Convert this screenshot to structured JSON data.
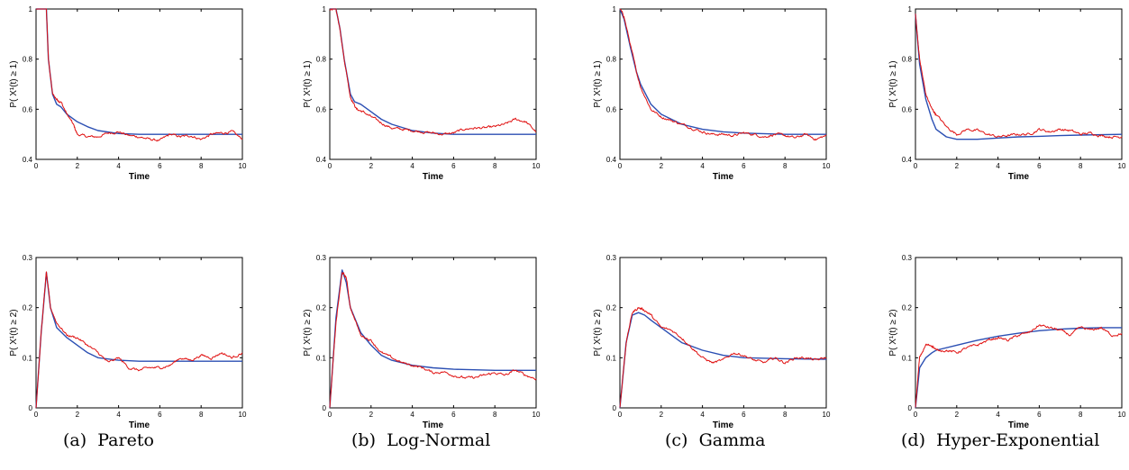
{
  "captions": [
    {
      "label": "(a)",
      "text": "Pareto"
    },
    {
      "label": "(b)",
      "text": "Log-Normal"
    },
    {
      "label": "(c)",
      "text": "Gamma"
    },
    {
      "label": "(d)",
      "text": "Hyper-Exponential"
    }
  ],
  "colors": {
    "model": "#2b4fb3",
    "simulation": "#e01010",
    "axis": "#000000"
  },
  "chart_data": [
    {
      "type": "line",
      "panel": "a-top",
      "xlabel": "Time",
      "ylabel": "P( X¹(t) ≥ 1)",
      "xlim": [
        0,
        10
      ],
      "ylim": [
        0.4,
        1
      ],
      "xticks": [
        "0",
        "2",
        "4",
        "6",
        "8",
        "10"
      ],
      "yticks": [
        "0.4",
        "0.6",
        "0.8",
        "1"
      ],
      "series": [
        {
          "role": "model",
          "x": [
            0,
            0.5,
            0.6,
            0.8,
            1,
            1.2,
            1.5,
            2,
            2.5,
            3,
            4,
            5,
            6,
            8,
            10
          ],
          "y": [
            1,
            1,
            0.8,
            0.66,
            0.62,
            0.61,
            0.58,
            0.55,
            0.53,
            0.515,
            0.503,
            0.5,
            0.5,
            0.5,
            0.5
          ]
        },
        {
          "role": "simulation",
          "x": [
            0,
            0.5,
            0.6,
            0.8,
            1,
            1.2,
            1.5,
            1.8,
            2,
            2.5,
            3,
            3.5,
            4,
            4.5,
            5,
            5.5,
            6,
            6.5,
            7,
            7.5,
            8,
            8.5,
            9,
            9.5,
            10
          ],
          "y": [
            1,
            1,
            0.8,
            0.66,
            0.64,
            0.63,
            0.58,
            0.54,
            0.5,
            0.49,
            0.49,
            0.505,
            0.51,
            0.495,
            0.49,
            0.48,
            0.475,
            0.5,
            0.49,
            0.495,
            0.48,
            0.5,
            0.505,
            0.51,
            0.48
          ]
        }
      ]
    },
    {
      "type": "line",
      "panel": "b-top",
      "xlabel": "Time",
      "ylabel": "P( X¹(t) ≥ 1)",
      "xlim": [
        0,
        10
      ],
      "ylim": [
        0.4,
        1
      ],
      "xticks": [
        "0",
        "2",
        "4",
        "6",
        "8",
        "10"
      ],
      "yticks": [
        "0.4",
        "0.6",
        "0.8",
        "1"
      ],
      "series": [
        {
          "role": "model",
          "x": [
            0,
            0.3,
            0.5,
            0.7,
            1,
            1.2,
            1.5,
            2,
            2.5,
            3,
            4,
            5,
            6,
            8,
            10
          ],
          "y": [
            1,
            1,
            0.92,
            0.8,
            0.66,
            0.63,
            0.62,
            0.59,
            0.56,
            0.54,
            0.515,
            0.505,
            0.5,
            0.5,
            0.5
          ]
        },
        {
          "role": "simulation",
          "x": [
            0,
            0.3,
            0.5,
            0.7,
            1,
            1.3,
            1.6,
            2,
            2.5,
            3,
            3.5,
            4,
            4.5,
            5,
            5.5,
            6,
            6.5,
            7,
            7.5,
            8,
            8.5,
            9,
            9.5,
            10
          ],
          "y": [
            1,
            1,
            0.92,
            0.8,
            0.65,
            0.6,
            0.59,
            0.57,
            0.545,
            0.525,
            0.52,
            0.515,
            0.51,
            0.505,
            0.5,
            0.505,
            0.52,
            0.525,
            0.525,
            0.53,
            0.54,
            0.56,
            0.55,
            0.51
          ]
        }
      ]
    },
    {
      "type": "line",
      "panel": "c-top",
      "xlabel": "Time",
      "ylabel": "P( X¹(t) ≥ 1)",
      "xlim": [
        0,
        10
      ],
      "ylim": [
        0.4,
        1
      ],
      "xticks": [
        "0",
        "2",
        "4",
        "6",
        "8",
        "10"
      ],
      "yticks": [
        "0.4",
        "0.6",
        "0.8",
        "1"
      ],
      "series": [
        {
          "role": "model",
          "x": [
            0,
            0.2,
            0.5,
            0.8,
            1,
            1.5,
            2,
            2.5,
            3,
            4,
            5,
            6,
            8,
            10
          ],
          "y": [
            1,
            0.96,
            0.85,
            0.75,
            0.7,
            0.62,
            0.58,
            0.56,
            0.54,
            0.52,
            0.51,
            0.505,
            0.5,
            0.5
          ]
        },
        {
          "role": "simulation",
          "x": [
            0,
            0.2,
            0.5,
            0.8,
            1,
            1.5,
            2,
            2.5,
            3,
            3.5,
            4,
            4.5,
            5,
            5.5,
            6,
            6.5,
            7,
            7.5,
            8,
            8.5,
            9,
            9.5,
            10
          ],
          "y": [
            1,
            0.97,
            0.86,
            0.75,
            0.69,
            0.6,
            0.57,
            0.555,
            0.54,
            0.525,
            0.51,
            0.5,
            0.5,
            0.495,
            0.505,
            0.5,
            0.49,
            0.5,
            0.495,
            0.485,
            0.5,
            0.48,
            0.495
          ]
        }
      ]
    },
    {
      "type": "line",
      "panel": "d-top",
      "xlabel": "Time",
      "ylabel": "P( X¹(t) ≥ 1)",
      "xlim": [
        0,
        10
      ],
      "ylim": [
        0.4,
        1
      ],
      "xticks": [
        "0",
        "2",
        "4",
        "6",
        "8",
        "10"
      ],
      "yticks": [
        "0.4",
        "0.6",
        "0.8",
        "1"
      ],
      "series": [
        {
          "role": "model",
          "x": [
            0,
            0.2,
            0.5,
            0.8,
            1,
            1.5,
            2,
            3,
            4,
            5,
            6,
            7,
            8,
            10
          ],
          "y": [
            0.98,
            0.78,
            0.64,
            0.56,
            0.52,
            0.49,
            0.48,
            0.48,
            0.485,
            0.49,
            0.492,
            0.495,
            0.497,
            0.5
          ]
        },
        {
          "role": "simulation",
          "x": [
            0,
            0.2,
            0.5,
            0.8,
            1,
            1.5,
            2,
            2.5,
            3,
            3.5,
            4,
            4.5,
            5,
            5.5,
            6,
            6.5,
            7,
            7.5,
            8,
            8.5,
            9,
            9.5,
            10
          ],
          "y": [
            0.98,
            0.8,
            0.66,
            0.6,
            0.58,
            0.53,
            0.5,
            0.52,
            0.515,
            0.5,
            0.49,
            0.495,
            0.5,
            0.5,
            0.52,
            0.51,
            0.52,
            0.515,
            0.5,
            0.505,
            0.495,
            0.49,
            0.49
          ]
        }
      ]
    },
    {
      "type": "line",
      "panel": "a-bottom",
      "xlabel": "Time",
      "ylabel": "P( X¹(t) ≥ 2)",
      "xlim": [
        0,
        10
      ],
      "ylim": [
        0,
        0.3
      ],
      "xticks": [
        "0",
        "2",
        "4",
        "6",
        "8",
        "10"
      ],
      "yticks": [
        "0",
        "0.1",
        "0.2",
        "0.3"
      ],
      "series": [
        {
          "role": "model",
          "x": [
            0,
            0.25,
            0.5,
            0.7,
            1,
            1.5,
            2,
            2.5,
            3,
            4,
            5,
            6,
            8,
            10
          ],
          "y": [
            0,
            0.15,
            0.27,
            0.2,
            0.16,
            0.14,
            0.125,
            0.11,
            0.1,
            0.095,
            0.093,
            0.093,
            0.093,
            0.093
          ]
        },
        {
          "role": "simulation",
          "x": [
            0,
            0.25,
            0.5,
            0.7,
            1,
            1.5,
            2,
            2.5,
            3,
            3.5,
            4,
            4.5,
            5,
            5.5,
            6,
            6.5,
            7,
            7.5,
            8,
            8.5,
            9,
            9.5,
            10
          ],
          "y": [
            0,
            0.15,
            0.27,
            0.2,
            0.17,
            0.145,
            0.14,
            0.125,
            0.11,
            0.09,
            0.1,
            0.08,
            0.075,
            0.08,
            0.08,
            0.085,
            0.1,
            0.095,
            0.105,
            0.1,
            0.11,
            0.1,
            0.11
          ]
        }
      ]
    },
    {
      "type": "line",
      "panel": "b-bottom",
      "xlabel": "Time",
      "ylabel": "P( X¹(t) ≥ 2)",
      "xlim": [
        0,
        10
      ],
      "ylim": [
        0,
        0.3
      ],
      "xticks": [
        "0",
        "2",
        "4",
        "6",
        "8",
        "10"
      ],
      "yticks": [
        "0",
        "0.1",
        "0.2",
        "0.3"
      ],
      "series": [
        {
          "role": "model",
          "x": [
            0,
            0.3,
            0.6,
            0.8,
            1,
            1.5,
            2,
            2.5,
            3,
            4,
            5,
            6,
            8,
            10
          ],
          "y": [
            0,
            0.18,
            0.275,
            0.25,
            0.2,
            0.15,
            0.125,
            0.105,
            0.095,
            0.085,
            0.08,
            0.077,
            0.075,
            0.075
          ]
        },
        {
          "role": "simulation",
          "x": [
            0,
            0.3,
            0.6,
            0.8,
            1,
            1.5,
            2,
            2.5,
            3,
            3.5,
            4,
            4.5,
            5,
            5.5,
            6,
            6.5,
            7,
            7.5,
            8,
            8.5,
            9,
            9.5,
            10
          ],
          "y": [
            0,
            0.17,
            0.27,
            0.26,
            0.2,
            0.145,
            0.135,
            0.11,
            0.1,
            0.09,
            0.085,
            0.08,
            0.07,
            0.072,
            0.065,
            0.06,
            0.06,
            0.065,
            0.07,
            0.065,
            0.075,
            0.065,
            0.058
          ]
        }
      ]
    },
    {
      "type": "line",
      "panel": "c-bottom",
      "xlabel": "Time",
      "ylabel": "P( X¹(t) ≥ 2)",
      "xlim": [
        0,
        10
      ],
      "ylim": [
        0,
        0.3
      ],
      "xticks": [
        "0",
        "2",
        "4",
        "6",
        "8",
        "10"
      ],
      "yticks": [
        "0",
        "0.1",
        "0.2",
        "0.3"
      ],
      "series": [
        {
          "role": "model",
          "x": [
            0,
            0.3,
            0.6,
            0.9,
            1.2,
            1.5,
            2,
            2.5,
            3,
            4,
            5,
            6,
            8,
            10
          ],
          "y": [
            0,
            0.13,
            0.185,
            0.19,
            0.185,
            0.175,
            0.16,
            0.145,
            0.13,
            0.115,
            0.105,
            0.1,
            0.098,
            0.097
          ]
        },
        {
          "role": "simulation",
          "x": [
            0,
            0.3,
            0.6,
            0.9,
            1.2,
            1.5,
            2,
            2.5,
            3,
            3.5,
            4,
            4.5,
            5,
            5.5,
            6,
            6.5,
            7,
            7.5,
            8,
            8.5,
            9,
            9.5,
            10
          ],
          "y": [
            0,
            0.13,
            0.19,
            0.2,
            0.195,
            0.185,
            0.16,
            0.155,
            0.14,
            0.12,
            0.1,
            0.09,
            0.095,
            0.11,
            0.105,
            0.095,
            0.09,
            0.1,
            0.09,
            0.1,
            0.1,
            0.095,
            0.1
          ]
        }
      ]
    },
    {
      "type": "line",
      "panel": "d-bottom",
      "xlabel": "Time",
      "ylabel": "P( X¹(t) ≥ 2)",
      "xlim": [
        0,
        10
      ],
      "ylim": [
        0,
        0.3
      ],
      "xticks": [
        "0",
        "2",
        "4",
        "6",
        "8",
        "10"
      ],
      "yticks": [
        "0",
        "0.1",
        "0.2",
        "0.3"
      ],
      "series": [
        {
          "role": "model",
          "x": [
            0,
            0.2,
            0.5,
            0.8,
            1,
            2,
            3,
            4,
            5,
            6,
            7,
            8,
            9,
            10
          ],
          "y": [
            0,
            0.08,
            0.1,
            0.11,
            0.115,
            0.125,
            0.135,
            0.143,
            0.149,
            0.154,
            0.157,
            0.159,
            0.16,
            0.16
          ]
        },
        {
          "role": "simulation",
          "x": [
            0,
            0.2,
            0.5,
            0.8,
            1,
            1.5,
            2,
            2.5,
            3,
            3.5,
            4,
            4.5,
            5,
            5.5,
            6,
            6.5,
            7,
            7.5,
            8,
            8.5,
            9,
            9.5,
            10
          ],
          "y": [
            0,
            0.1,
            0.125,
            0.125,
            0.115,
            0.115,
            0.11,
            0.12,
            0.125,
            0.135,
            0.14,
            0.135,
            0.145,
            0.15,
            0.165,
            0.16,
            0.155,
            0.145,
            0.16,
            0.155,
            0.16,
            0.145,
            0.148
          ]
        }
      ]
    }
  ]
}
